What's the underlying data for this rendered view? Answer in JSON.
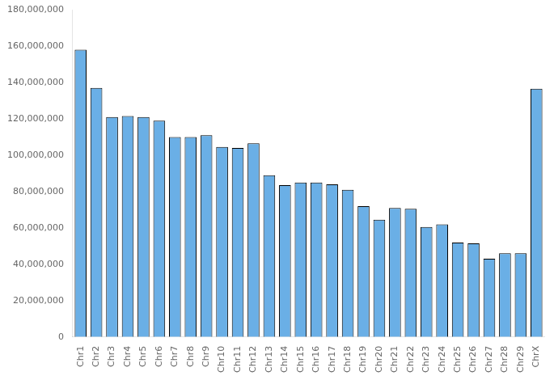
{
  "chart_data": {
    "type": "bar",
    "categories": [
      "Chr1",
      "Chr2",
      "Chr3",
      "Chr4",
      "Chr5",
      "Chr6",
      "Chr7",
      "Chr8",
      "Chr9",
      "Chr10",
      "Chr11",
      "Chr12",
      "Chr13",
      "Chr14",
      "Chr15",
      "Chr16",
      "Chr17",
      "Chr18",
      "Chr19",
      "Chr20",
      "Chr21",
      "Chr22",
      "Chr23",
      "Chr24",
      "Chr25",
      "Chr26",
      "Chr27",
      "Chr28",
      "Chr29",
      "ChrX"
    ],
    "values": [
      158000000,
      137000000,
      121000000,
      121500000,
      121000000,
      119000000,
      110000000,
      110000000,
      111000000,
      104500000,
      104000000,
      106500000,
      89000000,
      83500000,
      85000000,
      85000000,
      84000000,
      81000000,
      72000000,
      64500000,
      71000000,
      70500000,
      60500000,
      62000000,
      52000000,
      51500000,
      43000000,
      46000000,
      46000000,
      136500000
    ],
    "color": "#6aafe6",
    "ylim": [
      0,
      180000000
    ],
    "yticks": [
      0,
      {
        "value": 20000000,
        "label": "20,000,000"
      },
      {
        "value": 40000000,
        "label": "40,000,000"
      },
      {
        "value": 60000000,
        "label": "60,000,000"
      },
      {
        "value": 80000000,
        "label": "80,000,000"
      },
      {
        "value": 100000000,
        "label": "100,000,000"
      },
      {
        "value": 120000000,
        "label": "120,000,000"
      },
      {
        "value": 140000000,
        "label": "140,000,000"
      },
      {
        "value": 160000000,
        "label": "160,000,000"
      },
      {
        "value": 180000000,
        "label": "180,000,000"
      }
    ],
    "grid": false
  }
}
